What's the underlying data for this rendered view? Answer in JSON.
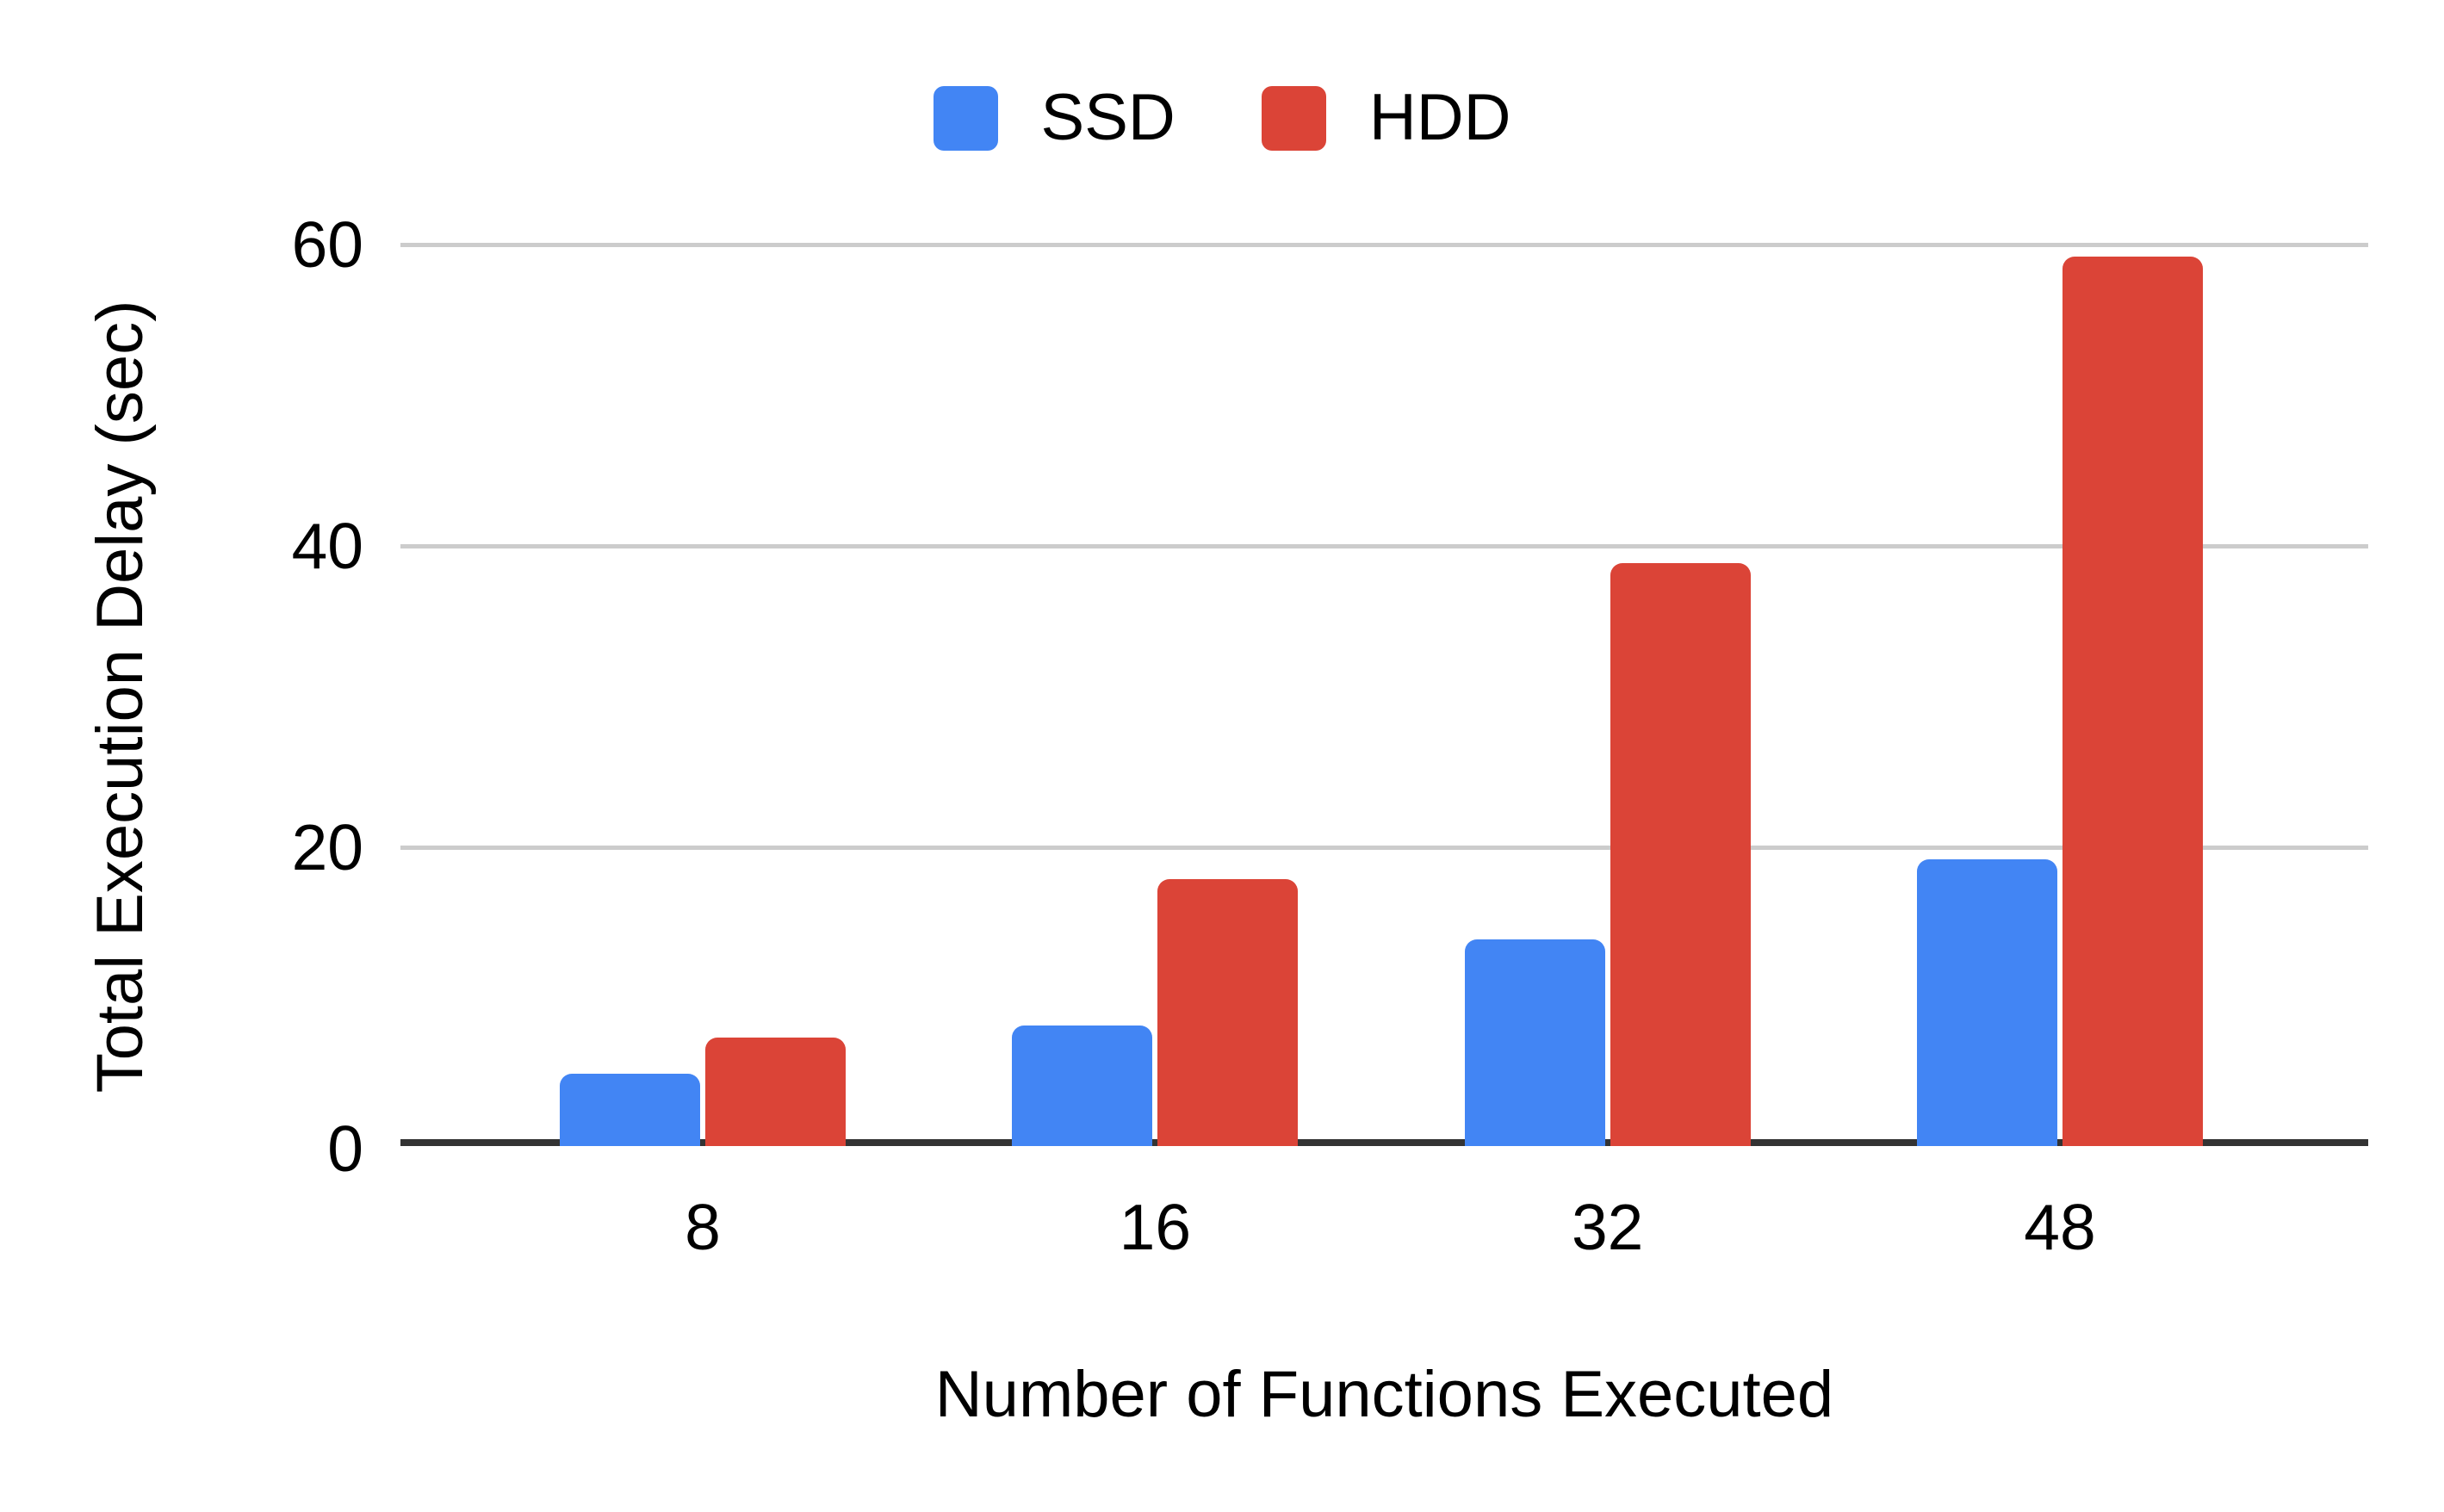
{
  "chart_data": {
    "type": "bar",
    "title": "",
    "categories": [
      "8",
      "16",
      "32",
      "48"
    ],
    "series": [
      {
        "name": "SSD",
        "color": "#4285F4",
        "values": [
          4.8,
          8.0,
          13.7,
          19.0
        ]
      },
      {
        "name": "HDD",
        "color": "#DB4437",
        "values": [
          7.2,
          17.7,
          38.7,
          59.0
        ]
      }
    ],
    "xlabel": "Number of Functions Executed",
    "ylabel": "Total Execution Delay (sec)",
    "ylim": [
      0,
      60
    ],
    "yticks": [
      0,
      20,
      40,
      60
    ],
    "grid": true,
    "legend_position": "top-center",
    "colors": {
      "background": "#ffffff",
      "gridline": "#cccccc",
      "axis_line": "#333333",
      "text": "#000000"
    }
  }
}
